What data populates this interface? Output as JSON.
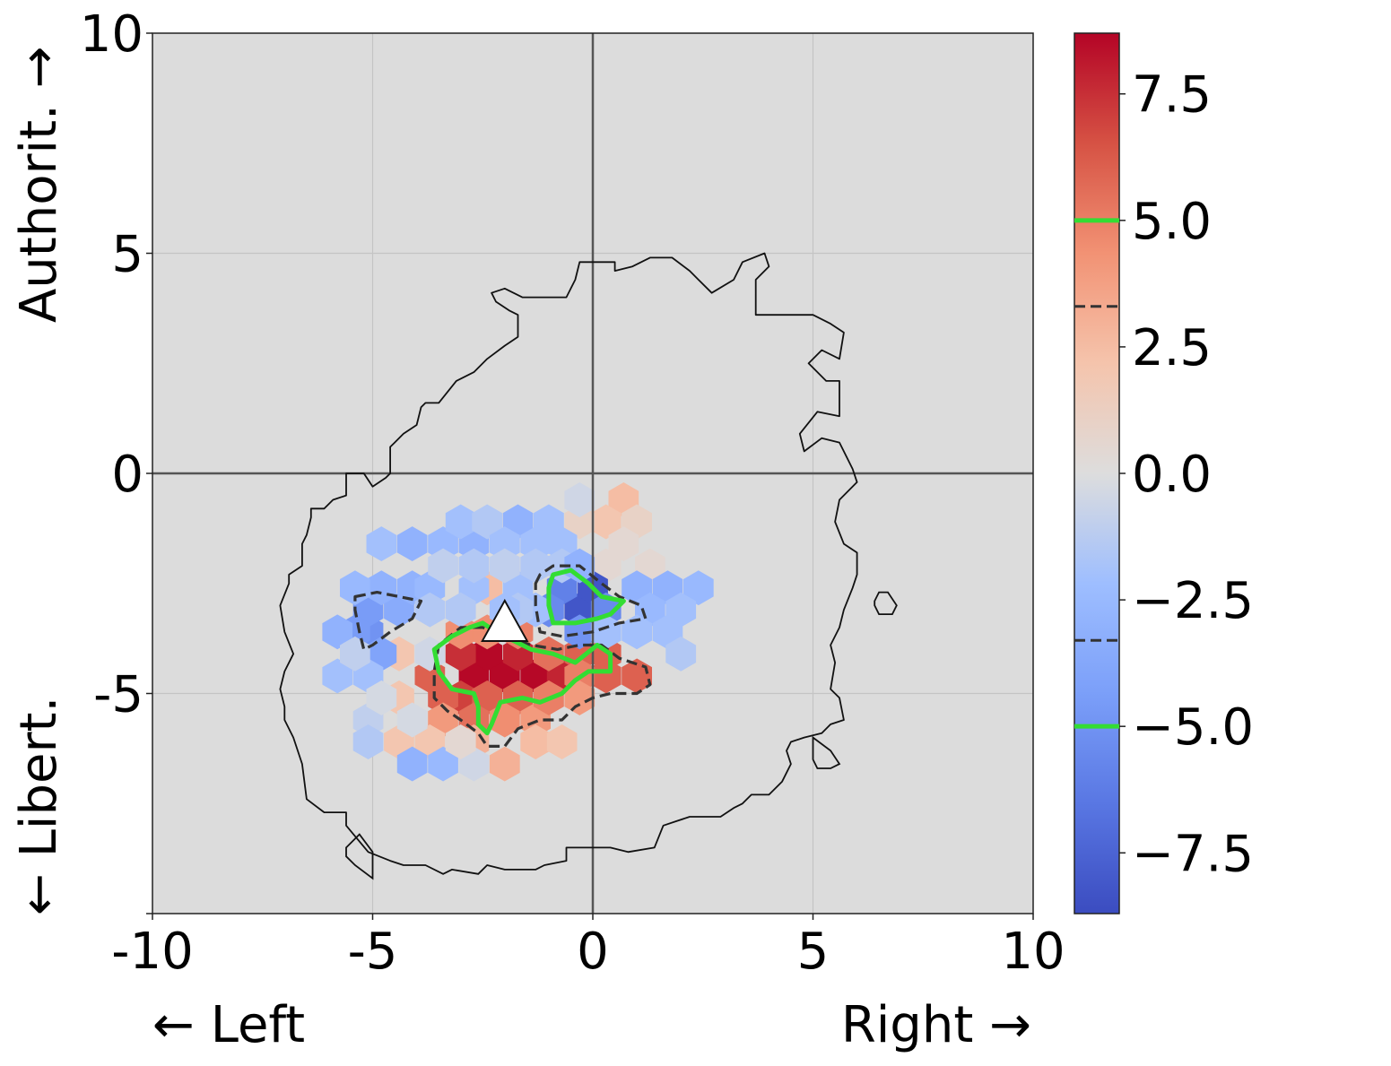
{
  "chart_data": {
    "type": "heatmap",
    "subtype": "hexbin with contours",
    "x_axis": {
      "range": [
        -10,
        10
      ],
      "ticks": [
        -10,
        -5,
        0,
        5,
        10
      ],
      "tick_labels": [
        "-10",
        "-5",
        "0",
        "5",
        "10"
      ],
      "label_left": "← Left",
      "label_right": "Right →"
    },
    "y_axis": {
      "range": [
        -10,
        10
      ],
      "ticks": [
        -10,
        -5,
        0,
        5,
        10
      ],
      "tick_labels": [
        "",
        "-5",
        "0",
        "5",
        "10"
      ],
      "label_bottom": "← Libert.",
      "label_top": "Authorit. →"
    },
    "grid": true,
    "zero_lines": true,
    "background_color": "#dcdcdc",
    "colorbar": {
      "colormap": "coolwarm",
      "range": [
        -8.7,
        8.7
      ],
      "ticks": [
        -7.5,
        -5.0,
        -2.5,
        0.0,
        2.5,
        5.0,
        7.5
      ],
      "tick_labels": [
        "−7.5",
        "−5.0",
        "−2.5",
        "0.0",
        "2.5",
        "5.0",
        "7.5"
      ],
      "contour_levels": [
        {
          "value": 5.0,
          "style": "solid",
          "color": "#33dd33"
        },
        {
          "value": 3.3,
          "style": "dashed",
          "color": "#333333"
        },
        {
          "value": -3.3,
          "style": "dashed",
          "color": "#333333"
        },
        {
          "value": -5.0,
          "style": "solid",
          "color": "#33dd33"
        }
      ]
    },
    "hexbins": [
      [
        -2.0,
        -4.6,
        8.6
      ],
      [
        -2.7,
        -4.6,
        8.6
      ],
      [
        -1.3,
        -4.6,
        8.6
      ],
      [
        -0.7,
        -4.6,
        7.8
      ],
      [
        -2.4,
        -4.1,
        8.6
      ],
      [
        -1.7,
        -4.1,
        7.8
      ],
      [
        -3.0,
        -4.1,
        7.5
      ],
      [
        -1.0,
        -4.1,
        5.5
      ],
      [
        -3.0,
        -5.1,
        7.0
      ],
      [
        -2.4,
        -5.1,
        6.0
      ],
      [
        -1.7,
        -5.1,
        6.0
      ],
      [
        -3.7,
        -4.6,
        6.0
      ],
      [
        -3.4,
        -5.1,
        6.0
      ],
      [
        -2.7,
        -5.6,
        5.5
      ],
      [
        -2.0,
        -5.6,
        4.5
      ],
      [
        -1.3,
        -5.6,
        4.0
      ],
      [
        -3.4,
        -5.6,
        4.0
      ],
      [
        -3.0,
        -3.6,
        4.5
      ],
      [
        -2.4,
        -3.6,
        4.5
      ],
      [
        -1.7,
        -3.6,
        5.0
      ],
      [
        -0.3,
        -4.1,
        6.0
      ],
      [
        0.3,
        -4.1,
        6.0
      ],
      [
        0.3,
        -4.6,
        6.0
      ],
      [
        1.0,
        -4.6,
        6.0
      ],
      [
        -0.3,
        -4.6,
        5.0
      ],
      [
        -1.0,
        -5.1,
        5.0
      ],
      [
        -0.3,
        -5.1,
        4.0
      ],
      [
        -2.0,
        -6.6,
        3.0
      ],
      [
        -2.7,
        -6.1,
        3.0
      ],
      [
        -4.4,
        -5.1,
        2.0
      ],
      [
        -4.4,
        -6.1,
        2.0
      ],
      [
        -3.7,
        -6.1,
        2.0
      ],
      [
        -1.3,
        -6.1,
        2.5
      ],
      [
        -0.7,
        -6.1,
        2.0
      ],
      [
        -4.4,
        -4.1,
        2.0
      ],
      [
        -2.4,
        -2.6,
        2.5
      ],
      [
        0.7,
        -0.6,
        2.5
      ],
      [
        0.3,
        -1.1,
        2.0
      ],
      [
        1.0,
        -1.1,
        1.0
      ],
      [
        0.7,
        -1.6,
        0.5
      ],
      [
        1.3,
        -2.1,
        0.5
      ],
      [
        0.3,
        -2.1,
        0.5
      ],
      [
        -0.3,
        -1.1,
        1.0
      ],
      [
        -0.3,
        -3.1,
        -8.2
      ],
      [
        0.0,
        -2.6,
        -8.2
      ],
      [
        -0.7,
        -2.6,
        -6.0
      ],
      [
        -1.0,
        -3.1,
        -5.5
      ],
      [
        0.3,
        -3.1,
        -5.5
      ],
      [
        -0.3,
        -3.6,
        -5.0
      ],
      [
        -5.1,
        -3.6,
        -5.0
      ],
      [
        -5.1,
        -3.1,
        -4.5
      ],
      [
        -5.4,
        -3.6,
        -4.5
      ],
      [
        -4.8,
        -4.1,
        -4.0
      ],
      [
        -5.8,
        -3.6,
        -3.0
      ],
      [
        -4.4,
        -3.1,
        -3.5
      ],
      [
        -4.8,
        -2.6,
        -3.0
      ],
      [
        -4.1,
        -2.6,
        -3.0
      ],
      [
        -5.4,
        -2.6,
        -2.5
      ],
      [
        -3.7,
        -2.6,
        -2.5
      ],
      [
        -5.8,
        -4.6,
        -2.0
      ],
      [
        -5.1,
        -4.6,
        -2.0
      ],
      [
        -4.1,
        -1.6,
        -3.0
      ],
      [
        -3.4,
        -1.6,
        -2.5
      ],
      [
        -2.7,
        -1.6,
        -3.0
      ],
      [
        -4.8,
        -1.6,
        -2.0
      ],
      [
        -3.0,
        -1.1,
        -2.0
      ],
      [
        -2.4,
        -1.1,
        -1.5
      ],
      [
        -1.7,
        -1.1,
        -3.0
      ],
      [
        -1.0,
        -1.1,
        -2.0
      ],
      [
        -2.0,
        -1.6,
        -2.0
      ],
      [
        -1.3,
        -1.6,
        -2.0
      ],
      [
        -0.7,
        -1.6,
        -2.0
      ],
      [
        -2.7,
        -2.6,
        -2.0
      ],
      [
        -1.7,
        -2.6,
        -2.0
      ],
      [
        -3.4,
        -2.1,
        -1.0
      ],
      [
        -2.7,
        -2.1,
        -1.5
      ],
      [
        -2.0,
        -2.1,
        -1.0
      ],
      [
        -1.3,
        -2.1,
        -1.5
      ],
      [
        -0.7,
        -2.1,
        -1.5
      ],
      [
        -0.3,
        -2.1,
        -3.0
      ],
      [
        -0.3,
        -0.6,
        -0.5
      ],
      [
        1.0,
        -2.6,
        -3.0
      ],
      [
        1.7,
        -2.6,
        -3.0
      ],
      [
        2.4,
        -2.6,
        -2.5
      ],
      [
        1.3,
        -3.1,
        -2.5
      ],
      [
        2.0,
        -3.1,
        -2.0
      ],
      [
        1.7,
        -3.6,
        -2.0
      ],
      [
        0.3,
        -3.6,
        -2.0
      ],
      [
        1.0,
        -3.6,
        -2.0
      ],
      [
        2.0,
        -4.1,
        -1.5
      ],
      [
        -1.3,
        -3.1,
        -2.0
      ],
      [
        -1.7,
        -3.1,
        -1.5
      ],
      [
        -2.0,
        -3.1,
        -2.0
      ],
      [
        -3.0,
        -3.1,
        -1.5
      ],
      [
        -3.7,
        -3.1,
        -1.5
      ],
      [
        -3.7,
        -4.1,
        -0.5
      ],
      [
        -5.1,
        -5.6,
        -1.0
      ],
      [
        -5.1,
        -6.1,
        -1.5
      ],
      [
        -4.1,
        -6.6,
        -3.0
      ],
      [
        -3.4,
        -6.6,
        -2.5
      ],
      [
        -2.7,
        -6.6,
        -0.5
      ],
      [
        -4.1,
        -5.6,
        -0.3
      ],
      [
        -4.8,
        -5.1,
        -0.3
      ],
      [
        -5.4,
        -4.1,
        -1.0
      ],
      [
        -3.0,
        -6.1,
        0.5
      ]
    ],
    "boundary_contour": [
      [
        -7.1,
        -3.0
      ],
      [
        -6.9,
        -2.5
      ],
      [
        -6.9,
        -2.3
      ],
      [
        -6.6,
        -2.1
      ],
      [
        -6.6,
        -1.6
      ],
      [
        -6.5,
        -1.4
      ],
      [
        -6.4,
        -1.0
      ],
      [
        -6.4,
        -0.8
      ],
      [
        -6.1,
        -0.8
      ],
      [
        -5.9,
        -0.6
      ],
      [
        -5.6,
        -0.5
      ],
      [
        -5.6,
        0.0
      ],
      [
        -5.2,
        0.0
      ],
      [
        -5.0,
        -0.3
      ],
      [
        -4.7,
        -0.1
      ],
      [
        -4.6,
        0.0
      ],
      [
        -4.6,
        0.6
      ],
      [
        -4.5,
        0.7
      ],
      [
        -4.3,
        0.9
      ],
      [
        -4.0,
        1.1
      ],
      [
        -3.9,
        1.5
      ],
      [
        -3.8,
        1.6
      ],
      [
        -3.5,
        1.6
      ],
      [
        -3.1,
        2.1
      ],
      [
        -2.7,
        2.3
      ],
      [
        -2.4,
        2.6
      ],
      [
        -2.0,
        2.9
      ],
      [
        -1.7,
        3.1
      ],
      [
        -1.7,
        3.6
      ],
      [
        -1.9,
        3.7
      ],
      [
        -2.2,
        3.9
      ],
      [
        -2.3,
        4.1
      ],
      [
        -2.0,
        4.2
      ],
      [
        -1.6,
        4.0
      ],
      [
        -1.3,
        4.0
      ],
      [
        -1.0,
        4.0
      ],
      [
        -0.6,
        4.0
      ],
      [
        -0.4,
        4.4
      ],
      [
        -0.3,
        4.8
      ],
      [
        0.5,
        4.8
      ],
      [
        0.5,
        4.6
      ],
      [
        0.9,
        4.7
      ],
      [
        1.3,
        4.9
      ],
      [
        1.8,
        4.9
      ],
      [
        2.2,
        4.6
      ],
      [
        2.4,
        4.4
      ],
      [
        2.7,
        4.1
      ],
      [
        3.2,
        4.4
      ],
      [
        3.4,
        4.8
      ],
      [
        3.9,
        5.0
      ],
      [
        4.0,
        4.7
      ],
      [
        3.7,
        4.4
      ],
      [
        3.7,
        3.6
      ],
      [
        5.0,
        3.6
      ],
      [
        5.4,
        3.4
      ],
      [
        5.7,
        3.2
      ],
      [
        5.6,
        2.6
      ],
      [
        5.2,
        2.8
      ],
      [
        4.9,
        2.5
      ],
      [
        5.3,
        2.1
      ],
      [
        5.6,
        2.1
      ],
      [
        5.6,
        1.3
      ],
      [
        5.1,
        1.4
      ],
      [
        4.7,
        0.9
      ],
      [
        4.8,
        0.5
      ],
      [
        5.2,
        0.8
      ],
      [
        5.6,
        0.7
      ],
      [
        5.9,
        0.1
      ],
      [
        6.0,
        -0.2
      ],
      [
        5.6,
        -0.6
      ],
      [
        5.5,
        -1.1
      ],
      [
        5.7,
        -1.6
      ],
      [
        6.0,
        -1.8
      ],
      [
        6.0,
        -2.3
      ],
      [
        5.9,
        -2.6
      ],
      [
        5.7,
        -3.1
      ],
      [
        5.6,
        -3.5
      ],
      [
        5.4,
        -3.9
      ],
      [
        5.5,
        -4.3
      ],
      [
        5.4,
        -4.9
      ],
      [
        5.6,
        -5.1
      ],
      [
        5.7,
        -5.6
      ],
      [
        5.4,
        -5.7
      ],
      [
        5.2,
        -5.9
      ],
      [
        4.8,
        -6.0
      ],
      [
        4.5,
        -6.1
      ],
      [
        4.4,
        -6.3
      ],
      [
        4.5,
        -6.6
      ],
      [
        4.3,
        -7.0
      ],
      [
        4.0,
        -7.3
      ],
      [
        3.6,
        -7.3
      ],
      [
        3.4,
        -7.5
      ],
      [
        3.2,
        -7.6
      ],
      [
        2.9,
        -7.8
      ],
      [
        2.2,
        -7.8
      ],
      [
        1.9,
        -7.9
      ],
      [
        1.6,
        -8.0
      ],
      [
        1.4,
        -8.5
      ],
      [
        0.8,
        -8.6
      ],
      [
        0.4,
        -8.5
      ],
      [
        0.0,
        -8.5
      ],
      [
        -0.6,
        -8.5
      ],
      [
        -0.6,
        -8.8
      ],
      [
        -1.1,
        -8.9
      ],
      [
        -1.3,
        -9.0
      ],
      [
        -2.0,
        -9.0
      ],
      [
        -2.4,
        -8.9
      ],
      [
        -2.6,
        -9.1
      ],
      [
        -3.2,
        -9.0
      ],
      [
        -3.4,
        -9.1
      ],
      [
        -3.8,
        -8.9
      ],
      [
        -4.3,
        -8.9
      ],
      [
        -4.6,
        -8.8
      ],
      [
        -5.1,
        -8.6
      ],
      [
        -5.6,
        -8.0
      ],
      [
        -5.6,
        -7.7
      ],
      [
        -6.1,
        -7.7
      ],
      [
        -6.5,
        -7.4
      ],
      [
        -6.6,
        -6.6
      ],
      [
        -6.8,
        -6.0
      ],
      [
        -7.0,
        -5.6
      ],
      [
        -7.0,
        -5.3
      ],
      [
        -7.1,
        -4.9
      ],
      [
        -7.0,
        -4.5
      ],
      [
        -6.8,
        -4.1
      ],
      [
        -7.0,
        -3.6
      ],
      [
        -7.1,
        -3.0
      ]
    ],
    "boundary_islands": [
      [
        [
          6.4,
          -2.9
        ],
        [
          6.4,
          -3.0
        ],
        [
          6.5,
          -3.2
        ],
        [
          6.8,
          -3.2
        ],
        [
          6.9,
          -3.0
        ],
        [
          6.7,
          -2.7
        ],
        [
          6.5,
          -2.7
        ],
        [
          6.4,
          -2.9
        ]
      ],
      [
        [
          5.0,
          -6.0
        ],
        [
          5.4,
          -6.3
        ],
        [
          5.6,
          -6.6
        ],
        [
          5.4,
          -6.7
        ],
        [
          5.1,
          -6.7
        ],
        [
          5.0,
          -6.5
        ],
        [
          5.0,
          -6.0
        ]
      ],
      [
        [
          -5.6,
          -8.5
        ],
        [
          -5.3,
          -8.2
        ],
        [
          -5.0,
          -8.6
        ],
        [
          -5.0,
          -9.2
        ],
        [
          -5.4,
          -8.9
        ],
        [
          -5.6,
          -8.7
        ],
        [
          -5.6,
          -8.5
        ]
      ]
    ],
    "green_contours": [
      [
        [
          -2.5,
          -3.4
        ],
        [
          -2.8,
          -3.5
        ],
        [
          -3.2,
          -3.7
        ],
        [
          -3.6,
          -4.0
        ],
        [
          -3.5,
          -4.5
        ],
        [
          -3.2,
          -4.9
        ],
        [
          -2.7,
          -5.0
        ],
        [
          -2.6,
          -5.3
        ],
        [
          -2.6,
          -5.7
        ],
        [
          -2.4,
          -5.9
        ],
        [
          -2.3,
          -5.7
        ],
        [
          -2.1,
          -5.2
        ],
        [
          -1.6,
          -5.1
        ],
        [
          -1.2,
          -5.2
        ],
        [
          -0.7,
          -5.0
        ],
        [
          -0.4,
          -4.7
        ],
        [
          -0.1,
          -4.5
        ],
        [
          0.4,
          -4.5
        ],
        [
          0.4,
          -4.1
        ],
        [
          0.1,
          -3.9
        ],
        [
          -0.4,
          -4.3
        ],
        [
          -0.9,
          -4.1
        ],
        [
          -1.4,
          -4.0
        ],
        [
          -1.8,
          -3.8
        ],
        [
          -2.2,
          -3.6
        ],
        [
          -2.5,
          -3.4
        ]
      ],
      [
        [
          -1.0,
          -2.6
        ],
        [
          -0.9,
          -2.3
        ],
        [
          -0.5,
          -2.2
        ],
        [
          -0.1,
          -2.5
        ],
        [
          0.2,
          -2.8
        ],
        [
          0.7,
          -2.9
        ],
        [
          0.4,
          -3.2
        ],
        [
          0.1,
          -3.3
        ],
        [
          -0.4,
          -3.4
        ],
        [
          -0.9,
          -3.4
        ],
        [
          -1.0,
          -3.0
        ],
        [
          -1.0,
          -2.6
        ]
      ]
    ],
    "dashed_contours": [
      [
        [
          -2.5,
          -3.5
        ],
        [
          -3.0,
          -3.5
        ],
        [
          -3.5,
          -3.9
        ],
        [
          -3.6,
          -4.5
        ],
        [
          -3.6,
          -5.1
        ],
        [
          -3.3,
          -5.4
        ],
        [
          -3.0,
          -5.6
        ],
        [
          -2.6,
          -5.9
        ],
        [
          -2.4,
          -6.2
        ],
        [
          -2.0,
          -6.2
        ],
        [
          -1.7,
          -5.8
        ],
        [
          -1.2,
          -5.6
        ],
        [
          -0.7,
          -5.6
        ],
        [
          -0.4,
          -5.3
        ],
        [
          0.0,
          -5.1
        ],
        [
          0.4,
          -5.0
        ],
        [
          1.0,
          -5.0
        ],
        [
          1.3,
          -4.8
        ],
        [
          1.2,
          -4.4
        ],
        [
          0.6,
          -4.2
        ],
        [
          0.2,
          -3.9
        ],
        [
          -0.3,
          -3.9
        ],
        [
          -0.8,
          -4.0
        ],
        [
          -1.4,
          -3.9
        ],
        [
          -2.0,
          -3.7
        ],
        [
          -2.5,
          -3.5
        ]
      ],
      [
        [
          -1.3,
          -2.5
        ],
        [
          -1.2,
          -2.3
        ],
        [
          -0.9,
          -2.1
        ],
        [
          -0.3,
          -2.1
        ],
        [
          0.2,
          -2.5
        ],
        [
          0.6,
          -2.8
        ],
        [
          1.1,
          -3.0
        ],
        [
          1.2,
          -3.3
        ],
        [
          0.6,
          -3.4
        ],
        [
          0.0,
          -3.6
        ],
        [
          -0.7,
          -3.7
        ],
        [
          -1.2,
          -3.6
        ],
        [
          -1.3,
          -3.0
        ],
        [
          -1.3,
          -2.5
        ]
      ],
      [
        [
          -5.4,
          -2.8
        ],
        [
          -4.9,
          -2.7
        ],
        [
          -4.4,
          -2.8
        ],
        [
          -3.9,
          -2.9
        ],
        [
          -4.1,
          -3.3
        ],
        [
          -4.6,
          -3.6
        ],
        [
          -5.0,
          -3.9
        ],
        [
          -5.2,
          -4.0
        ],
        [
          -5.3,
          -3.6
        ],
        [
          -5.4,
          -3.1
        ],
        [
          -5.4,
          -2.8
        ]
      ]
    ],
    "marker": {
      "shape": "triangle",
      "x": -2.0,
      "y": -3.4,
      "color": "#ffffff"
    }
  }
}
